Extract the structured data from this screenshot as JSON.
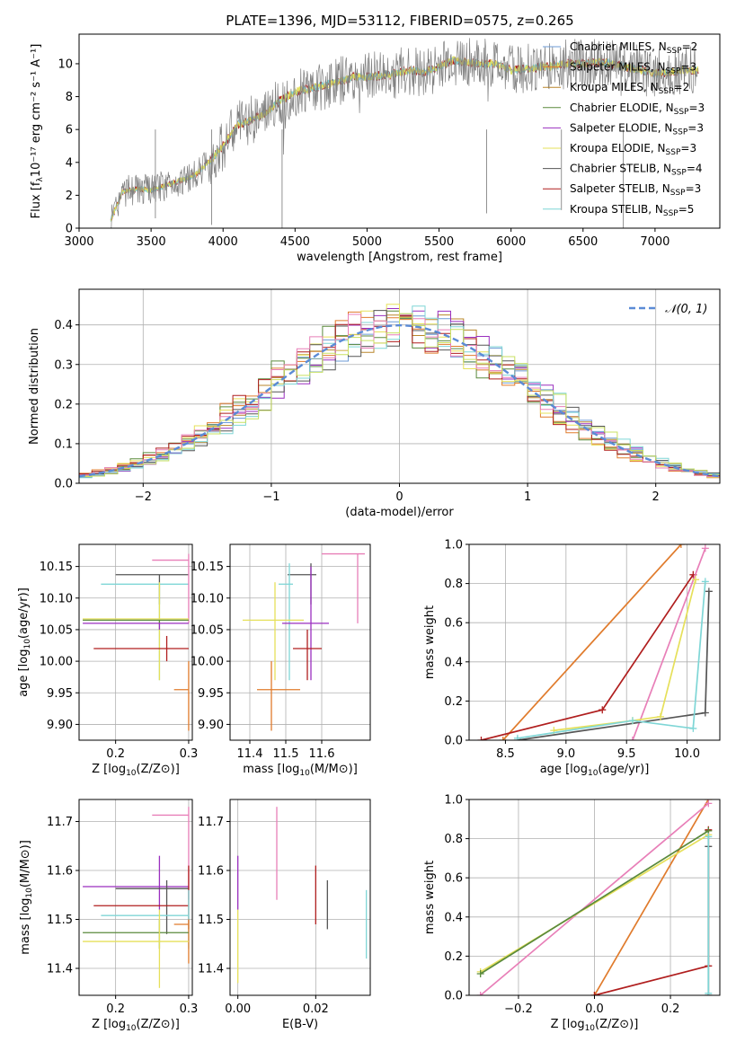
{
  "figure_title": "PLATE=1396, MJD=53112, FIBERID=0575, z=0.265",
  "colors": {
    "Chabrier MILES": "#6c9bd6",
    "Salpeter MILES": "#e07b2c",
    "Kroupa MILES": "#b8862b",
    "Chabrier ELODIE": "#5a8a3c",
    "Salpeter ELODIE": "#9a2fbf",
    "Kroupa ELODIE": "#e6e05a",
    "Chabrier STELIB": "#555555",
    "Salpeter STELIB": "#b01e1e",
    "Kroupa STELIB": "#7fd6d6",
    "pink": "#e87fb8",
    "lime": "#c8e060",
    "data": "#808080",
    "gaussian": "#5b8bd6"
  },
  "chart_data": [
    {
      "id": "spectrum",
      "type": "line",
      "title": "PLATE=1396, MJD=53112, FIBERID=0575, z=0.265",
      "xlabel": "wavelength [Angstrom, rest frame]",
      "ylabel": "Flux [f_λ 10^-17 erg cm^-2 s^-1 A^-1]",
      "xlim": [
        3000,
        7450
      ],
      "ylim": [
        0,
        11.8
      ],
      "xticks": [
        3000,
        3500,
        4000,
        4500,
        5000,
        5500,
        6000,
        6500,
        7000
      ],
      "yticks": [
        0,
        2,
        4,
        6,
        8,
        10
      ],
      "grid": false,
      "legend_position": "top-right",
      "legend": [
        {
          "label": "Chabrier MILES, N",
          "sub": "SSP",
          "tail": "=2",
          "color": "Chabrier MILES"
        },
        {
          "label": "Salpeter MILES, N",
          "sub": "SSP",
          "tail": "=3",
          "color": "Salpeter MILES"
        },
        {
          "label": "Kroupa MILES, N",
          "sub": "SSP",
          "tail": "=2",
          "color": "Kroupa MILES"
        },
        {
          "label": "Chabrier ELODIE, N",
          "sub": "SSP",
          "tail": "=3",
          "color": "Chabrier ELODIE"
        },
        {
          "label": "Salpeter ELODIE, N",
          "sub": "SSP",
          "tail": "=3",
          "color": "Salpeter ELODIE"
        },
        {
          "label": "Kroupa ELODIE, N",
          "sub": "SSP",
          "tail": "=3",
          "color": "Kroupa ELODIE"
        },
        {
          "label": "Chabrier STELIB, N",
          "sub": "SSP",
          "tail": "=4",
          "color": "Chabrier STELIB"
        },
        {
          "label": "Salpeter STELIB, N",
          "sub": "SSP",
          "tail": "=3",
          "color": "Salpeter STELIB"
        },
        {
          "label": "Kroupa STELIB, N",
          "sub": "SSP",
          "tail": "=5",
          "color": "Kroupa STELIB"
        }
      ],
      "x": [
        3220,
        3300,
        3400,
        3500,
        3600,
        3700,
        3800,
        3900,
        4000,
        4100,
        4200,
        4300,
        4400,
        4500,
        4600,
        4700,
        4800,
        4900,
        5000,
        5100,
        5200,
        5300,
        5400,
        5500,
        5600,
        5700,
        5800,
        5900,
        6000,
        6100,
        6200,
        6300,
        6400,
        6500,
        6600,
        6700,
        6800,
        6900,
        7000,
        7100,
        7200,
        7300
      ],
      "y": [
        0.5,
        2.2,
        2.4,
        2.3,
        2.6,
        2.9,
        3.2,
        4.0,
        5.0,
        6.3,
        6.6,
        7.0,
        7.8,
        8.3,
        8.5,
        8.7,
        8.9,
        9.2,
        9.2,
        9.3,
        9.4,
        9.6,
        9.5,
        9.8,
        10.2,
        10.1,
        10.0,
        10.0,
        9.6,
        9.7,
        9.8,
        9.9,
        10.0,
        10.0,
        10.1,
        10.0,
        9.8,
        9.6,
        9.4,
        9.5,
        9.6,
        9.6
      ]
    },
    {
      "id": "residuals",
      "type": "line",
      "xlabel": "(data-model)/error",
      "ylabel": "Normed distribution",
      "xlim": [
        -2.5,
        2.5
      ],
      "ylim": [
        0,
        0.49
      ],
      "xticks": [
        -2,
        -1,
        0,
        1,
        2
      ],
      "yticks": [
        0.0,
        0.1,
        0.2,
        0.3,
        0.4
      ],
      "grid": true,
      "legend_position": "top-right",
      "legend": [
        {
          "label": "𝒩(0, 1)",
          "color": "gaussian"
        }
      ],
      "x": [
        -2.5,
        -2.25,
        -2.0,
        -1.75,
        -1.5,
        -1.25,
        -1.0,
        -0.75,
        -0.5,
        -0.25,
        0.0,
        0.25,
        0.5,
        0.75,
        1.0,
        1.25,
        1.5,
        1.75,
        2.0,
        2.25,
        2.5
      ],
      "y": [
        0.035,
        0.04,
        0.065,
        0.1,
        0.14,
        0.19,
        0.25,
        0.31,
        0.36,
        0.385,
        0.41,
        0.42,
        0.39,
        0.355,
        0.3,
        0.24,
        0.18,
        0.12,
        0.07,
        0.04,
        0.02
      ]
    },
    {
      "id": "age-vs-Z",
      "type": "scatter",
      "xlabel": "Z [log10(Z/Z⊙)]",
      "ylabel": "age [log10(age/yr)]",
      "xlim": [
        0.15,
        0.305
      ],
      "ylim": [
        9.875,
        10.185
      ],
      "xticks": [
        0.2,
        0.3
      ],
      "yticks": [
        9.9,
        9.95,
        10.0,
        10.05,
        10.1,
        10.15
      ],
      "grid": true,
      "points": [
        {
          "x": 0.26,
          "y": 10.137,
          "xerr": [
            0.2,
            0.3
          ],
          "yerr": [
            10.09,
            10.137
          ],
          "color": "Chabrier STELIB"
        },
        {
          "x": 0.26,
          "y": 10.122,
          "xerr": [
            0.18,
            0.3
          ],
          "yerr": [
            9.97,
            10.122
          ],
          "color": "Kroupa STELIB"
        },
        {
          "x": 0.3,
          "y": 10.16,
          "xerr": [
            0.25,
            0.3
          ],
          "yerr": [
            10.06,
            10.17
          ],
          "color": "pink"
        },
        {
          "x": 0.26,
          "y": 10.067,
          "xerr": [
            0.155,
            0.3
          ],
          "yerr": [
            9.97,
            10.125
          ],
          "color": "Kroupa ELODIE"
        },
        {
          "x": 0.26,
          "y": 10.065,
          "xerr": [
            0.155,
            0.3
          ],
          "yerr": [
            10.06,
            10.065
          ],
          "color": "Chabrier ELODIE"
        },
        {
          "x": 0.26,
          "y": 10.06,
          "xerr": [
            0.155,
            0.3
          ],
          "yerr": [
            10.05,
            10.06
          ],
          "color": "Salpeter ELODIE"
        },
        {
          "x": 0.27,
          "y": 10.02,
          "xerr": [
            0.17,
            0.3
          ],
          "yerr": [
            10.0,
            10.04
          ],
          "color": "Salpeter STELIB"
        },
        {
          "x": 0.3,
          "y": 9.955,
          "xerr": [
            0.28,
            0.3
          ],
          "yerr": [
            9.89,
            10.0
          ],
          "color": "Salpeter MILES"
        }
      ]
    },
    {
      "id": "age-vs-mass",
      "type": "scatter",
      "xlabel": "mass [log10(M/M⊙)]",
      "ylabel": "",
      "xlim": [
        11.345,
        11.735
      ],
      "ylim": [
        9.875,
        10.185
      ],
      "xticks": [
        11.4,
        11.5,
        11.6
      ],
      "yticks": [
        9.9,
        9.95,
        10.0,
        10.05,
        10.1,
        10.15
      ],
      "grid": true,
      "points": [
        {
          "x": 11.57,
          "y": 10.137,
          "xerr": [
            11.505,
            11.585
          ],
          "yerr": [
            10.09,
            10.155
          ],
          "color": "Chabrier STELIB"
        },
        {
          "x": 11.51,
          "y": 10.122,
          "xerr": [
            11.48,
            11.52
          ],
          "yerr": [
            9.97,
            10.155
          ],
          "color": "Kroupa STELIB"
        },
        {
          "x": 11.7,
          "y": 10.17,
          "xerr": [
            11.6,
            11.72
          ],
          "yerr": [
            10.06,
            10.17
          ],
          "color": "pink"
        },
        {
          "x": 11.47,
          "y": 10.065,
          "xerr": [
            11.38,
            11.55
          ],
          "yerr": [
            9.97,
            10.125
          ],
          "color": "Kroupa ELODIE"
        },
        {
          "x": 11.57,
          "y": 10.06,
          "xerr": [
            11.49,
            11.62
          ],
          "yerr": [
            9.97,
            10.15
          ],
          "color": "Salpeter ELODIE"
        },
        {
          "x": 11.56,
          "y": 10.02,
          "xerr": [
            11.52,
            11.6
          ],
          "yerr": [
            9.97,
            10.05
          ],
          "color": "Salpeter STELIB"
        },
        {
          "x": 11.46,
          "y": 9.955,
          "xerr": [
            11.42,
            11.54
          ],
          "yerr": [
            9.89,
            10.0
          ],
          "color": "Salpeter MILES"
        }
      ]
    },
    {
      "id": "massweight-vs-age",
      "type": "line",
      "xlabel": "age [log10(age/yr)]",
      "ylabel": "mass weight",
      "xlim": [
        8.2,
        10.27
      ],
      "ylim": [
        0,
        1.0
      ],
      "xticks": [
        8.5,
        9.0,
        9.5,
        10.0
      ],
      "yticks": [
        0.0,
        0.2,
        0.4,
        0.6,
        0.8,
        1.0
      ],
      "grid": true,
      "series": [
        {
          "color": "Salpeter MILES",
          "x": [
            8.48,
            9.95
          ],
          "y": [
            0.0,
            1.0
          ]
        },
        {
          "color": "Salpeter STELIB",
          "x": [
            8.3,
            9.3,
            10.05
          ],
          "y": [
            0.0,
            0.155,
            0.845
          ]
        },
        {
          "color": "pink",
          "x": [
            9.55,
            10.15
          ],
          "y": [
            0.0,
            0.98
          ]
        },
        {
          "color": "Chabrier STELIB",
          "x": [
            8.6,
            10.15,
            10.18
          ],
          "y": [
            0.0,
            0.14,
            0.76
          ]
        },
        {
          "color": "Kroupa ELODIE",
          "x": [
            8.9,
            9.55,
            9.78,
            10.07
          ],
          "y": [
            0.05,
            0.1,
            0.12,
            0.82
          ]
        },
        {
          "color": "Kroupa STELIB",
          "x": [
            8.6,
            9.55,
            10.05,
            10.15
          ],
          "y": [
            0.01,
            0.1,
            0.06,
            0.81
          ]
        }
      ]
    },
    {
      "id": "mass-vs-Z",
      "type": "scatter",
      "xlabel": "Z [log10(Z/Z⊙)]",
      "ylabel": "mass [log10(M/M⊙)]",
      "xlim": [
        0.15,
        0.305
      ],
      "ylim": [
        11.345,
        11.745
      ],
      "xticks": [
        0.2,
        0.3
      ],
      "yticks": [
        11.4,
        11.5,
        11.6,
        11.7
      ],
      "grid": true,
      "points": [
        {
          "x": 0.3,
          "y": 11.713,
          "xerr": [
            0.25,
            0.3
          ],
          "yerr": [
            11.54,
            11.73
          ],
          "color": "pink"
        },
        {
          "x": 0.26,
          "y": 11.567,
          "xerr": [
            0.155,
            0.3
          ],
          "yerr": [
            11.52,
            11.63
          ],
          "color": "Salpeter ELODIE"
        },
        {
          "x": 0.27,
          "y": 11.563,
          "xerr": [
            0.2,
            0.3
          ],
          "yerr": [
            11.47,
            11.58
          ],
          "color": "Chabrier STELIB"
        },
        {
          "x": 0.3,
          "y": 11.528,
          "xerr": [
            0.17,
            0.3
          ],
          "yerr": [
            11.48,
            11.61
          ],
          "color": "Salpeter STELIB"
        },
        {
          "x": 0.3,
          "y": 11.508,
          "xerr": [
            0.18,
            0.3
          ],
          "yerr": [
            11.44,
            11.56
          ],
          "color": "Kroupa STELIB"
        },
        {
          "x": 0.3,
          "y": 11.49,
          "xerr": [
            0.28,
            0.3
          ],
          "yerr": [
            11.41,
            11.5
          ],
          "color": "Salpeter MILES"
        },
        {
          "x": 0.26,
          "y": 11.473,
          "xerr": [
            0.155,
            0.3
          ],
          "yerr": [
            11.44,
            11.5
          ],
          "color": "Chabrier ELODIE"
        },
        {
          "x": 0.26,
          "y": 11.455,
          "xerr": [
            0.155,
            0.3
          ],
          "yerr": [
            11.36,
            11.52
          ],
          "color": "Kroupa ELODIE"
        }
      ]
    },
    {
      "id": "mass-vs-EBV",
      "type": "scatter",
      "xlabel": "E(B-V)",
      "ylabel": "",
      "xlim": [
        -0.002,
        0.034
      ],
      "ylim": [
        11.345,
        11.745
      ],
      "xticks": [
        0.0,
        0.02
      ],
      "yticks": [
        11.4,
        11.5,
        11.6,
        11.7
      ],
      "grid": true,
      "points": [
        {
          "x": 0.0,
          "y": 11.6,
          "yerr": [
            11.52,
            11.63
          ],
          "color": "Salpeter ELODIE"
        },
        {
          "x": 0.0,
          "y": 11.45,
          "yerr": [
            11.37,
            11.52
          ],
          "color": "Kroupa ELODIE"
        },
        {
          "x": 0.01,
          "y": 11.63,
          "yerr": [
            11.54,
            11.73
          ],
          "color": "pink"
        },
        {
          "x": 0.02,
          "y": 11.55,
          "yerr": [
            11.49,
            11.61
          ],
          "color": "Salpeter STELIB"
        },
        {
          "x": 0.023,
          "y": 11.53,
          "yerr": [
            11.48,
            11.58
          ],
          "color": "Chabrier STELIB"
        },
        {
          "x": 0.033,
          "y": 11.49,
          "yerr": [
            11.42,
            11.56
          ],
          "color": "Kroupa STELIB"
        }
      ]
    },
    {
      "id": "massweight-vs-Z",
      "type": "line",
      "xlabel": "Z [log10(Z/Z⊙)]",
      "ylabel": "mass weight",
      "xlim": [
        -0.33,
        0.33
      ],
      "ylim": [
        0,
        1.0
      ],
      "xticks": [
        -0.2,
        0.0,
        0.2
      ],
      "yticks": [
        0.0,
        0.2,
        0.4,
        0.6,
        0.8,
        1.0
      ],
      "grid": true,
      "series": [
        {
          "color": "Salpeter MILES",
          "x": [
            0.0,
            0.3
          ],
          "y": [
            0.0,
            1.0
          ]
        },
        {
          "color": "Salpeter STELIB",
          "x": [
            0.0,
            0.3,
            0.3
          ],
          "y": [
            0.0,
            0.15,
            0.845
          ]
        },
        {
          "color": "pink",
          "x": [
            -0.3,
            0.3
          ],
          "y": [
            0.0,
            0.98
          ]
        },
        {
          "color": "Kroupa ELODIE",
          "x": [
            -0.3,
            0.3
          ],
          "y": [
            0.12,
            0.82
          ]
        },
        {
          "color": "Chabrier ELODIE",
          "x": [
            -0.3,
            0.3
          ],
          "y": [
            0.11,
            0.84
          ]
        },
        {
          "color": "Chabrier STELIB",
          "x": [
            0.3,
            0.3
          ],
          "y": [
            0.0,
            0.76
          ]
        },
        {
          "color": "Kroupa STELIB",
          "x": [
            0.3,
            0.3
          ],
          "y": [
            0.01,
            0.81
          ]
        }
      ]
    }
  ]
}
